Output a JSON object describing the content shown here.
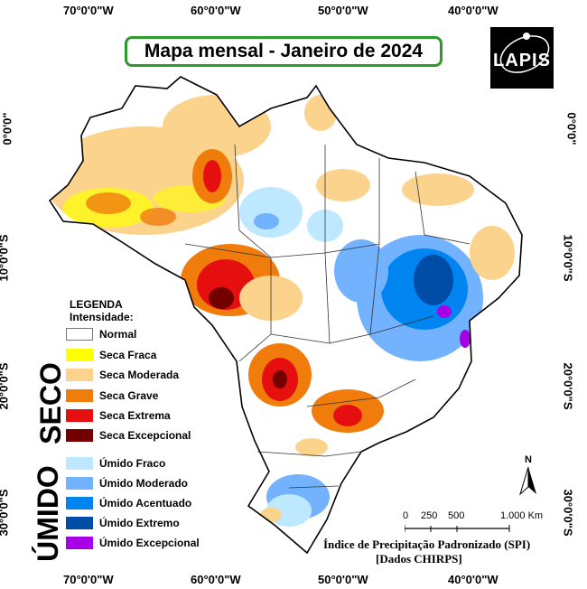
{
  "title": "Mapa mensal - Janeiro de 2024",
  "logo": "LAPIS",
  "coords": {
    "top": [
      "70°0'0\"W",
      "60°0'0\"W",
      "50°0'0\"W",
      "40°0'0\"W"
    ],
    "bottom": [
      "70°0'0\"W",
      "60°0'0\"W",
      "50°0'0\"W",
      "40°0'0\"W"
    ],
    "left": [
      "0°0'0\"",
      "10°0'0\"S",
      "20°0'0\"S",
      "30°0'0\"S"
    ],
    "right": [
      "0°0'0\"",
      "10°0'0\"S",
      "20°0'0\"S",
      "30°0'0\"S"
    ]
  },
  "legend": {
    "title": "LEGENDA",
    "subtitle": "Intensidade:",
    "normal": "Normal",
    "dry_group": "SECO",
    "wet_group": "ÚMIDO",
    "dry": [
      {
        "label": "Seca Fraca",
        "color": "#ffff00"
      },
      {
        "label": "Seca Moderada",
        "color": "#fcd38c"
      },
      {
        "label": "Seca Grave",
        "color": "#f07c0c"
      },
      {
        "label": "Seca Extrema",
        "color": "#e60f0f"
      },
      {
        "label": "Seca Excepcional",
        "color": "#730000"
      }
    ],
    "wet": [
      {
        "label": "Úmido Fraco",
        "color": "#bee8ff"
      },
      {
        "label": "Úmido Moderado",
        "color": "#73b2ff"
      },
      {
        "label": "Úmido Acentuado",
        "color": "#0084f0"
      },
      {
        "label": "Úmido Extremo",
        "color": "#004da8"
      },
      {
        "label": "Úmido Excepcional",
        "color": "#a800e6"
      }
    ]
  },
  "scale": {
    "ticks": [
      "0",
      "250",
      "500",
      "1.000 Km"
    ]
  },
  "north": "N",
  "source": [
    "Índice de Precipitação Padronizado (SPI)",
    "[Dados CHIRPS]"
  ]
}
